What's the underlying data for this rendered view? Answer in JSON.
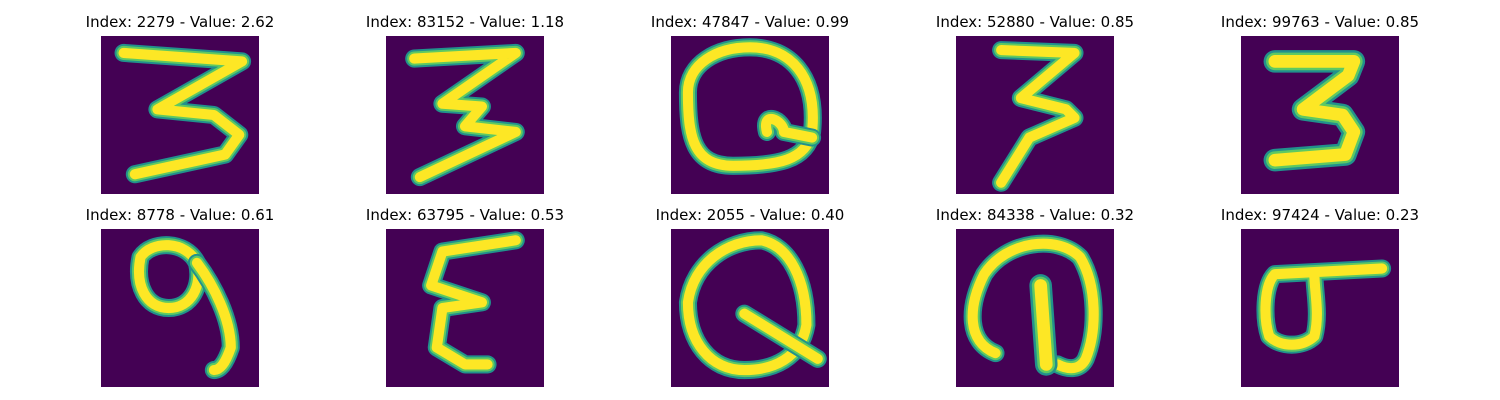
{
  "colors": {
    "background": "#440154",
    "stroke_outer": "#21918c",
    "stroke_mid": "#5ec962",
    "stroke_inner": "#fde725"
  },
  "panels": [
    {
      "title": "Index: 2279 - Value: 2.62",
      "glyph": "3"
    },
    {
      "title": "Index: 83152 - Value: 1.18",
      "glyph": "3"
    },
    {
      "title": "Index: 47847 - Value: 0.99",
      "glyph": "Q"
    },
    {
      "title": "Index: 52880 - Value: 0.85",
      "glyph": "3"
    },
    {
      "title": "Index: 99763 - Value: 0.85",
      "glyph": "3"
    },
    {
      "title": "Index: 8778 - Value: 0.61",
      "glyph": "9"
    },
    {
      "title": "Index: 63795 - Value: 0.53",
      "glyph": "E"
    },
    {
      "title": "Index: 2055 - Value: 0.40",
      "glyph": "Q"
    },
    {
      "title": "Index: 84338 - Value: 0.32",
      "glyph": "@"
    },
    {
      "title": "Index: 97424 - Value: 0.23",
      "glyph": "σ"
    }
  ]
}
